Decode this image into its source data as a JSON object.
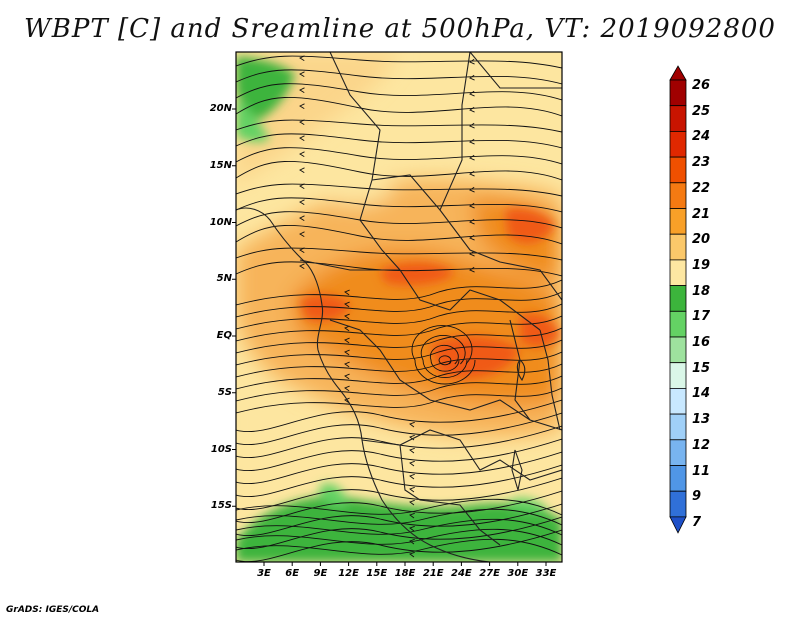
{
  "title": "WBPT [C] and Sreamline at 500hPa, VT: 2019092800",
  "credit": "GrADS: IGES/COLA",
  "lat_labels": [
    "20N",
    "15N",
    "10N",
    "5N",
    "EQ",
    "5S",
    "10S",
    "15S"
  ],
  "lon_labels": [
    "3E",
    "6E",
    "9E",
    "12E",
    "15E",
    "18E",
    "21E",
    "24E",
    "27E",
    "30E",
    "33E"
  ],
  "colorbar": {
    "labels": [
      "26",
      "25",
      "24",
      "23",
      "22",
      "21",
      "20",
      "19",
      "18",
      "17",
      "16",
      "15",
      "14",
      "13",
      "12",
      "11",
      "9",
      "7"
    ],
    "colors": [
      "#a00000",
      "#c81400",
      "#e02800",
      "#f05000",
      "#f57a12",
      "#f8a028",
      "#fbc86a",
      "#fde7a2",
      "#3cb43c",
      "#64d264",
      "#9ee29e",
      "#daf7e8",
      "#c8e8ff",
      "#a0d0f8",
      "#78b4f0",
      "#5096e6",
      "#3070d8",
      "#1e50c8"
    ]
  },
  "map": {
    "field": "WBPT",
    "units": "C",
    "level": "500hPa",
    "colors": {
      "high": "#f05a14",
      "warm": "#f08c1e",
      "mid": "#f7b45a",
      "cool": "#fde6a0",
      "low": "#3cb43c",
      "low_light": "#64d264"
    }
  }
}
